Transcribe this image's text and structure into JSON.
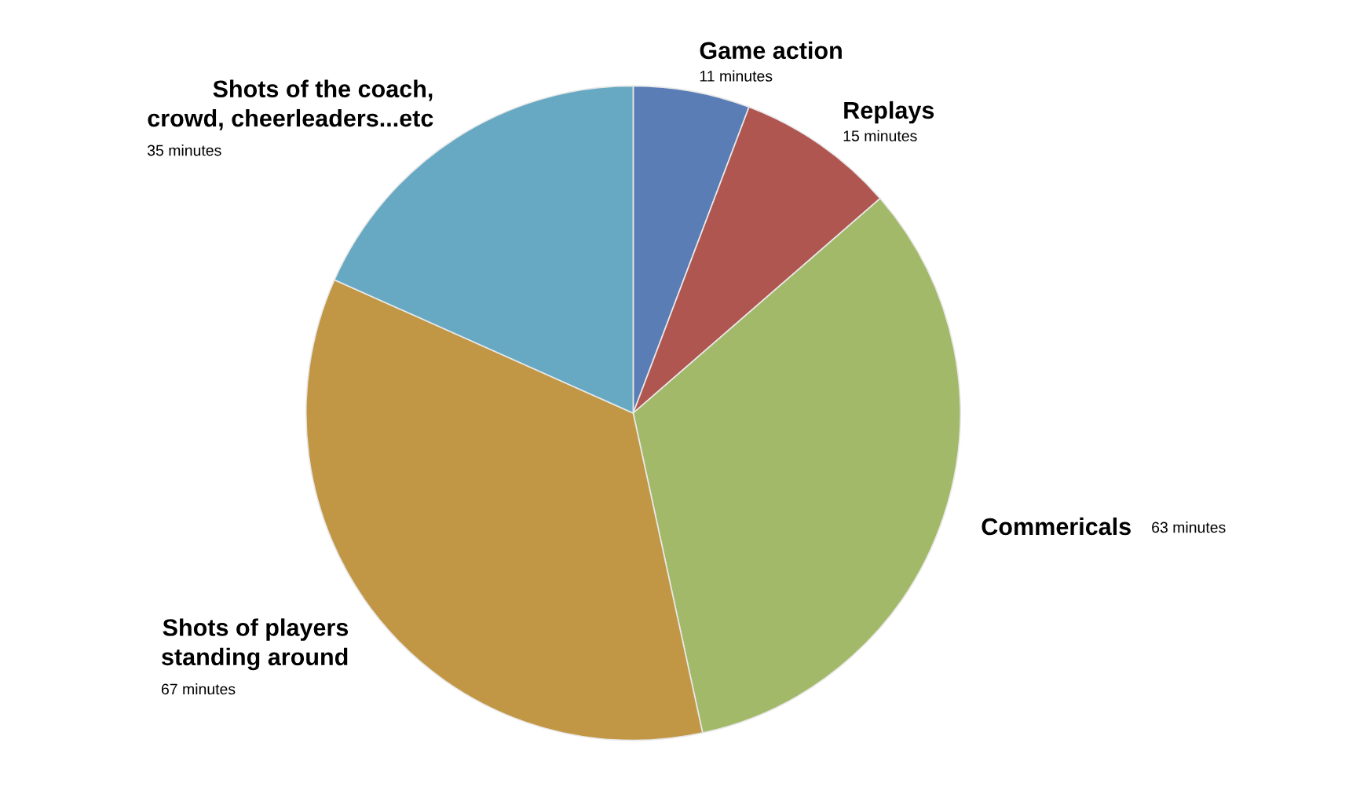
{
  "chart_data": {
    "type": "pie",
    "categories": [
      "Game action",
      "Replays",
      "Commericals",
      "Shots of players\nstanding around",
      "Shots of the coach,\ncrowd, cheerleaders...etc"
    ],
    "values": [
      11,
      15,
      63,
      67,
      35
    ],
    "value_labels": [
      "11 minutes",
      "15 minutes",
      "63 minutes",
      "67 minutes",
      "35 minutes"
    ],
    "colors": [
      "#5b7db5",
      "#b05650",
      "#a3b96a",
      "#c19746",
      "#67a9c3"
    ],
    "legend": false
  }
}
